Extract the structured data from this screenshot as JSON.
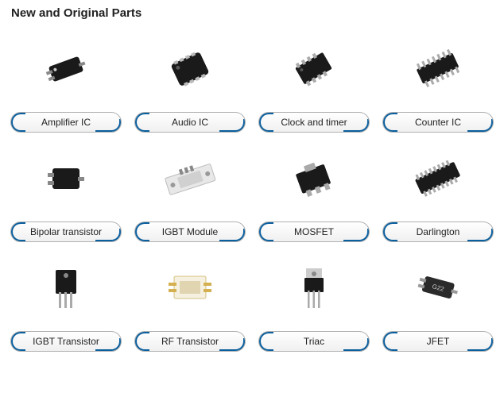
{
  "title": "New and Original Parts",
  "accent_color": "#0a5f9e",
  "pill_border_color": "#b0b0b0",
  "pill_bg_top": "#ffffff",
  "pill_bg_bottom": "#f0f0f0",
  "text_color": "#222222",
  "background_color": "#ffffff",
  "grid_cols": 4,
  "items": [
    {
      "label": "Amplifier IC",
      "icon": "sot23"
    },
    {
      "label": "Audio IC",
      "icon": "qfn"
    },
    {
      "label": "Clock and timer",
      "icon": "soic8"
    },
    {
      "label": "Counter IC",
      "icon": "dip"
    },
    {
      "label": "Bipolar transistor",
      "icon": "sot23b"
    },
    {
      "label": "IGBT Module",
      "icon": "module"
    },
    {
      "label": "MOSFET",
      "icon": "dpak"
    },
    {
      "label": "Darlington",
      "icon": "soic16"
    },
    {
      "label": "IGBT Transistor",
      "icon": "to247"
    },
    {
      "label": "RF Transistor",
      "icon": "rf"
    },
    {
      "label": "Triac",
      "icon": "to220"
    },
    {
      "label": "JFET",
      "icon": "sot23c"
    }
  ]
}
